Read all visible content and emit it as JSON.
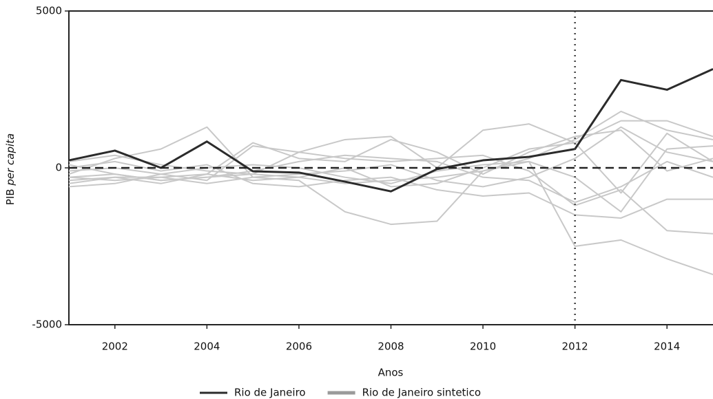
{
  "chart_data": {
    "type": "line",
    "xlabel": "Anos",
    "ylabel": {
      "text": "PIB",
      "italic": "per capita"
    },
    "x": [
      2001,
      2002,
      2003,
      2004,
      2005,
      2006,
      2007,
      2008,
      2009,
      2010,
      2011,
      2012,
      2013,
      2014,
      2015
    ],
    "xlim": [
      2001,
      2015
    ],
    "xticks": [
      2002,
      2004,
      2006,
      2008,
      2010,
      2012,
      2014
    ],
    "ylim": [
      -5000,
      5000
    ],
    "yticks": [
      -5000,
      0,
      5000
    ],
    "hline": 0,
    "vline": 2012,
    "legend": "bottom",
    "series": [
      {
        "name": "Rio de Janeiro",
        "color": "#2b2b2b",
        "values": [
          240,
          550,
          0,
          840,
          -110,
          -150,
          -440,
          -750,
          -40,
          240,
          350,
          600,
          2800,
          2490,
          3150
        ]
      },
      {
        "name": "Rio de Janeiro sintetico",
        "color": "#c8c8c8",
        "values": [
          -300,
          -200,
          -400,
          -300,
          -200,
          -300,
          -500,
          -400,
          -300,
          -100,
          300,
          900,
          1800,
          1200,
          900
        ]
      },
      {
        "color": "#c8c8c8",
        "values": [
          -200,
          300,
          600,
          1300,
          -300,
          -400,
          -1400,
          -1800,
          -1700,
          -100,
          200,
          -2500,
          -2300,
          -2900,
          -3400
        ]
      },
      {
        "color": "#c8c8c8",
        "values": [
          -600,
          -500,
          -200,
          -400,
          700,
          500,
          900,
          1000,
          0,
          1200,
          1400,
          800,
          1500,
          1500,
          1000
        ]
      },
      {
        "color": "#c8c8c8",
        "values": [
          0,
          200,
          -100,
          100,
          -500,
          -600,
          -400,
          -300,
          -700,
          -900,
          -800,
          -1500,
          -1600,
          -1000,
          -1000
        ]
      },
      {
        "color": "#c8c8c8",
        "values": [
          -400,
          -300,
          -500,
          -200,
          800,
          300,
          200,
          900,
          500,
          -200,
          500,
          1000,
          1200,
          -100,
          300
        ]
      },
      {
        "color": "#c8c8c8",
        "values": [
          200,
          400,
          100,
          -100,
          -200,
          500,
          300,
          200,
          300,
          400,
          -100,
          -1200,
          -700,
          -2000,
          -2100
        ]
      },
      {
        "color": "#c8c8c8",
        "values": [
          -300,
          -400,
          -300,
          -500,
          -300,
          -200,
          -100,
          100,
          -400,
          -600,
          -300,
          300,
          1300,
          500,
          200
        ]
      },
      {
        "color": "#c8c8c8",
        "values": [
          -100,
          0,
          -200,
          0,
          100,
          0,
          -300,
          -500,
          -100,
          100,
          200,
          -300,
          -1400,
          600,
          700
        ]
      },
      {
        "color": "#c8c8c8",
        "values": [
          100,
          -200,
          -400,
          -300,
          -100,
          200,
          400,
          300,
          200,
          -300,
          -400,
          -1100,
          -600,
          200,
          -300
        ]
      },
      {
        "color": "#c8c8c8",
        "values": [
          -500,
          -300,
          -300,
          -200,
          -400,
          -300,
          0,
          -600,
          -500,
          0,
          600,
          800,
          -800,
          1100,
          200
        ]
      }
    ]
  }
}
